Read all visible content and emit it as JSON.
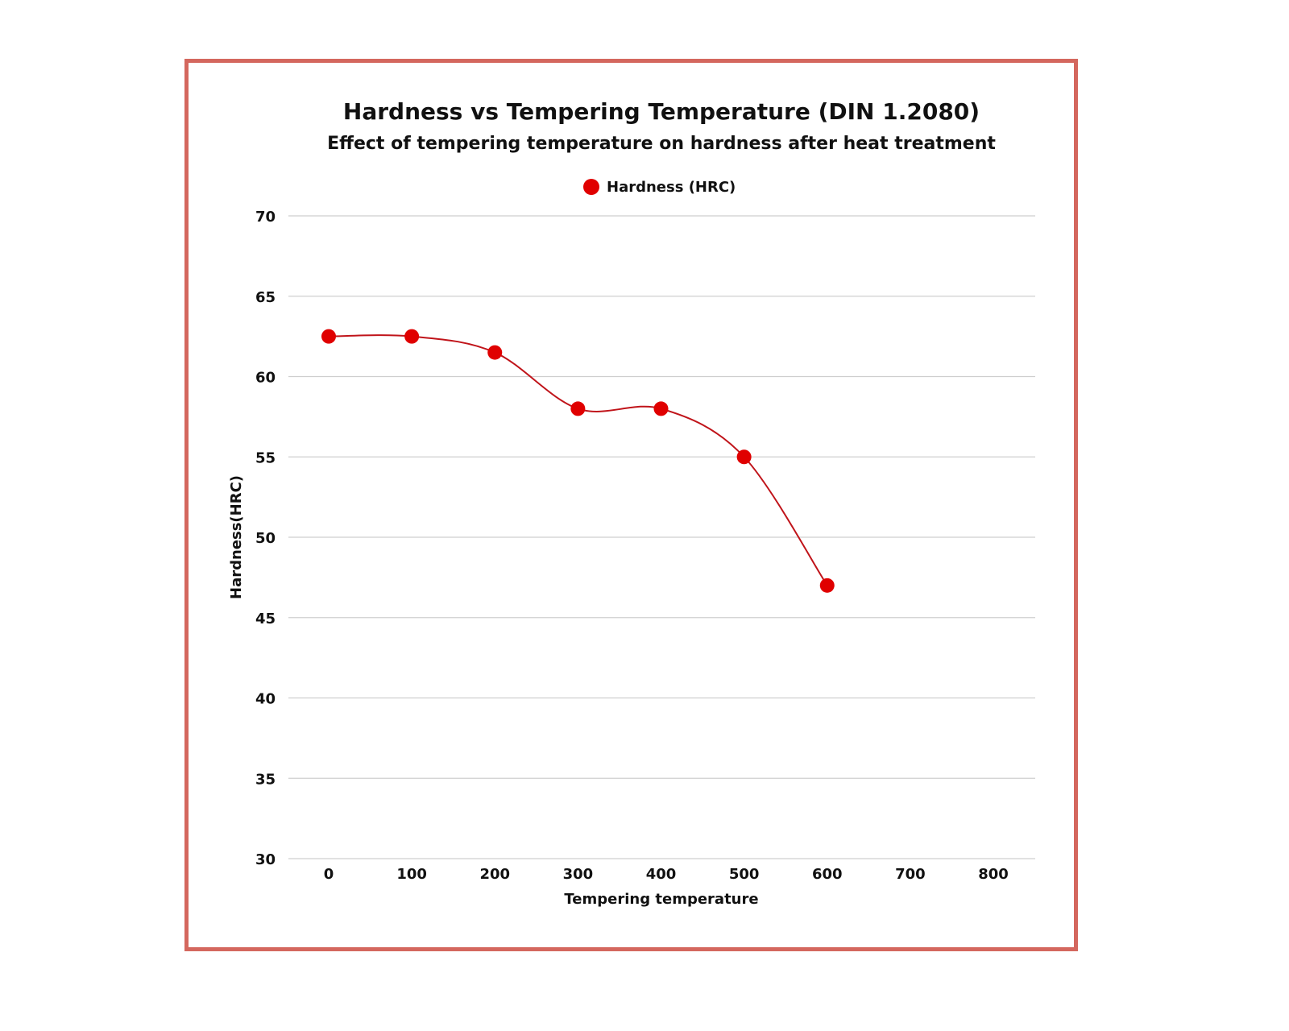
{
  "chart_data": {
    "type": "line",
    "title": "Hardness vs Tempering Temperature (DIN 1.2080)",
    "subtitle": "Effect of tempering temperature on hardness after heat treatment",
    "xlabel": "Tempering temperature",
    "ylabel": "Hardness(HRC)",
    "xlim": [
      0,
      800
    ],
    "ylim": [
      30,
      70
    ],
    "x_ticks": [
      0,
      100,
      200,
      300,
      400,
      500,
      600,
      700,
      800
    ],
    "y_ticks": [
      30,
      35,
      40,
      45,
      50,
      55,
      60,
      65,
      70
    ],
    "grid": "horizontal",
    "legend_position": "top",
    "smooth": true,
    "series": [
      {
        "name": "Hardness (HRC)",
        "color": "#e00000",
        "line_color": "#c0141a",
        "x": [
          0,
          100,
          200,
          300,
          400,
          500,
          600
        ],
        "y": [
          62.5,
          62.5,
          61.5,
          58,
          58,
          55,
          47
        ]
      }
    ]
  },
  "frame_color": "#d4675e"
}
